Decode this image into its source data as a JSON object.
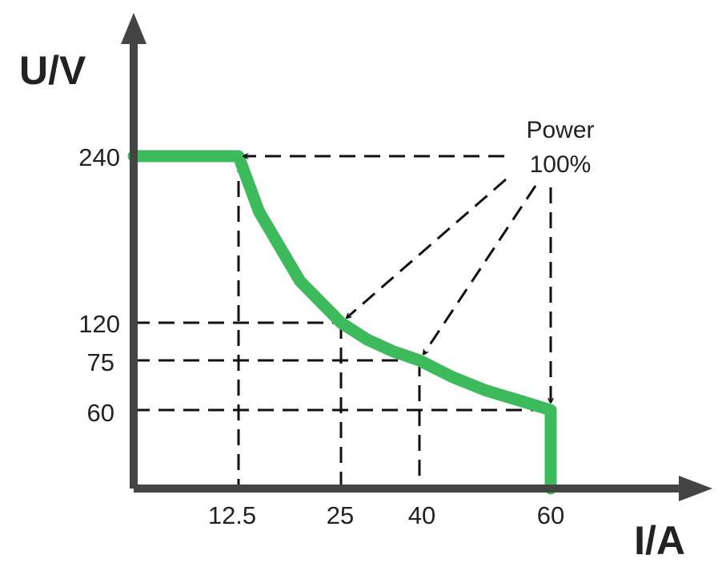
{
  "chart_data": {
    "type": "line",
    "title": "",
    "xlabel": "I/A",
    "ylabel": "U/V",
    "x_ticks": [
      "12.5",
      "25",
      "40",
      "60"
    ],
    "y_ticks": [
      "240",
      "120",
      "75",
      "60"
    ],
    "xlim": [
      0,
      60
    ],
    "ylim": [
      0,
      240
    ],
    "grid": false,
    "series": [
      {
        "x": [
          0,
          12.5,
          15,
          20,
          25,
          30,
          35,
          40,
          45,
          50,
          55,
          60,
          60
        ],
        "y": [
          240,
          240,
          200,
          150,
          120,
          100,
          85.7,
          75,
          70,
          66,
          63,
          60,
          0
        ],
        "color": "#3dba5c"
      }
    ],
    "reference_points": [
      {
        "x": 12.5,
        "y": 240
      },
      {
        "x": 25,
        "y": 120
      },
      {
        "x": 40,
        "y": 75
      },
      {
        "x": 60,
        "y": 60
      }
    ],
    "annotations": [
      {
        "text_lines": [
          "Power",
          "100%"
        ]
      }
    ],
    "colors": {
      "curve": "#3dba5c",
      "axis": "#444444",
      "guides": "#111111"
    }
  }
}
